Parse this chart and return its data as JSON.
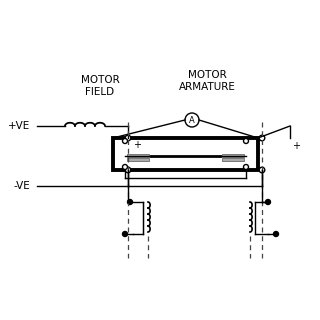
{
  "bg_color": "#ffffff",
  "line_color": "#000000",
  "label_motor_field": "MOTOR\nFIELD",
  "label_motor_armature": "MOTOR\nARMATURE",
  "label_plus_ve": "+VE",
  "label_minus_ve": "-VE",
  "label_A": "A",
  "label_plus1": "+",
  "label_plus2": "+"
}
